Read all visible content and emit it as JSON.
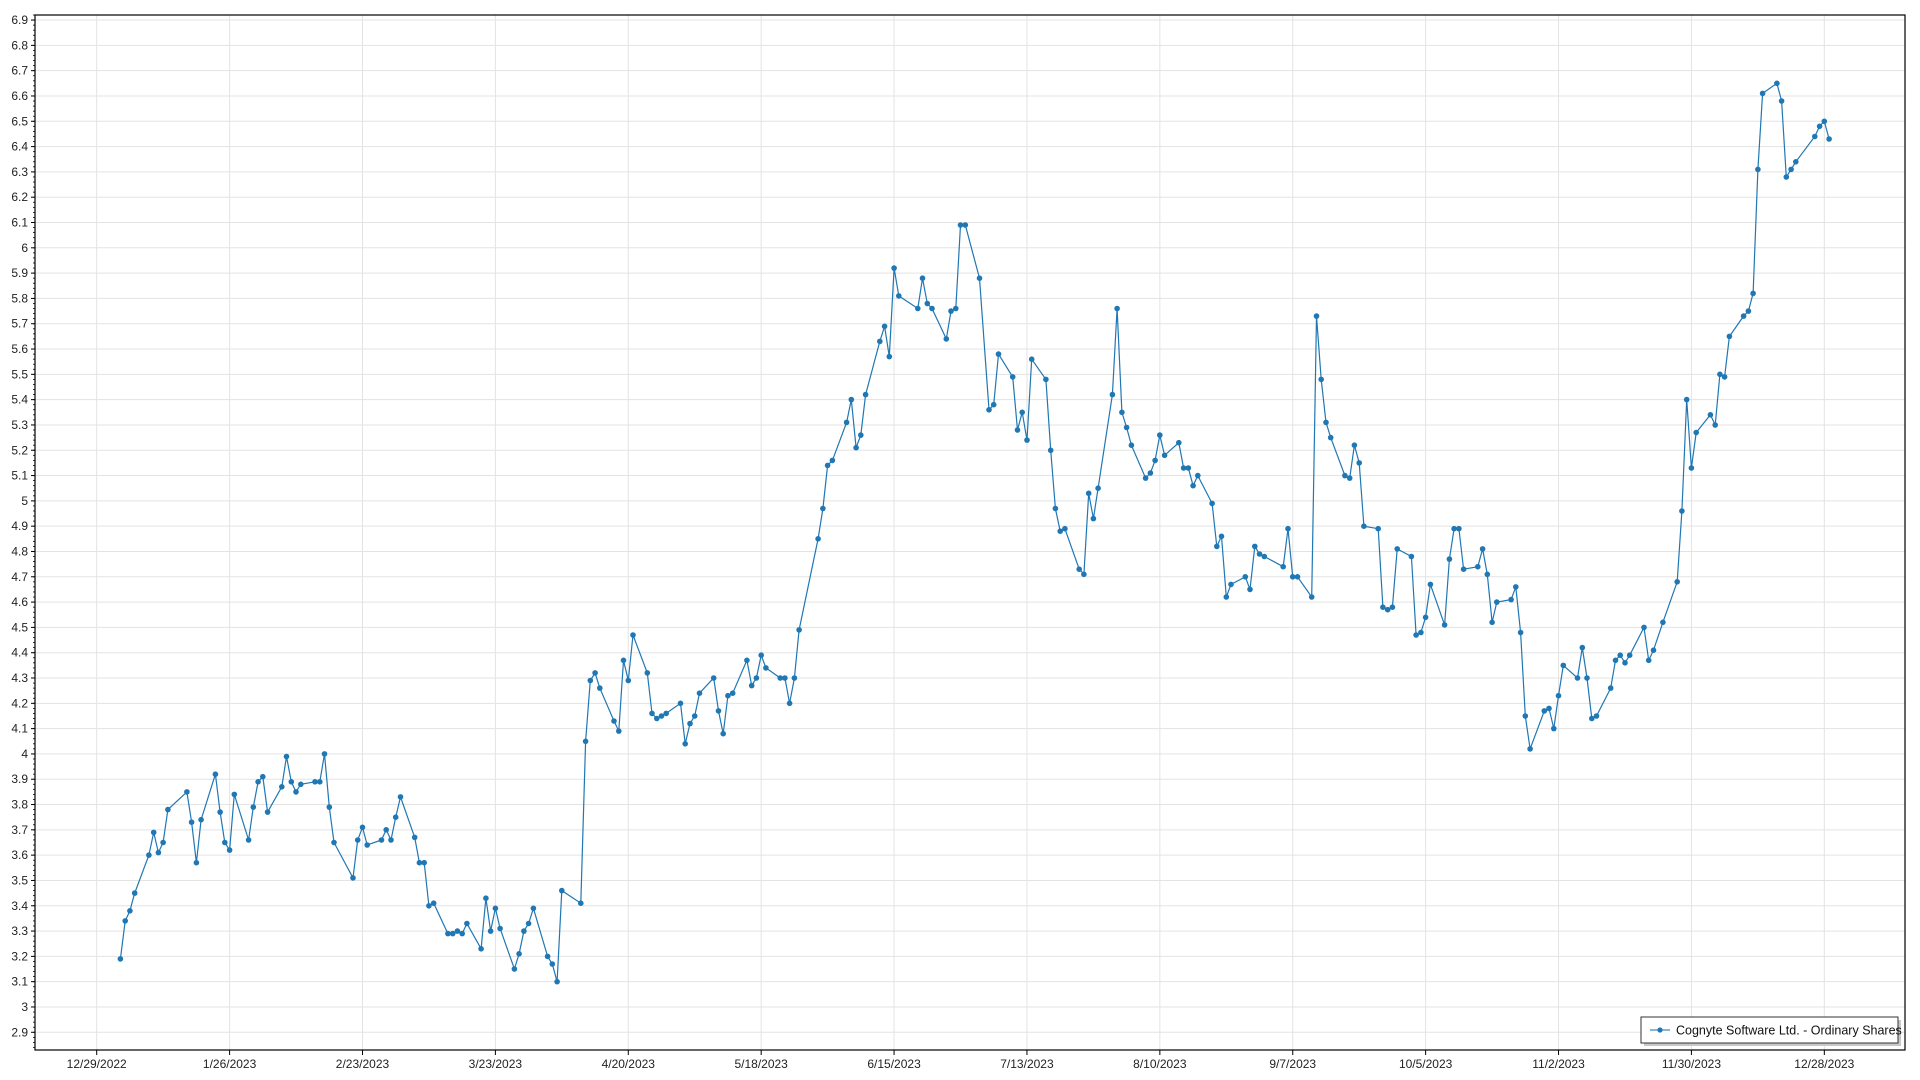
{
  "chart_data": {
    "type": "line",
    "title": "",
    "xlabel": "",
    "ylabel": "",
    "xlim": [
      "2022-12-16",
      "2024-01-14"
    ],
    "ylim": [
      2.83,
      6.92
    ],
    "grid": true,
    "legend_placement": "bottom-right",
    "x_ticks": [
      "12/29/2022",
      "1/26/2023",
      "2/23/2023",
      "3/23/2023",
      "4/20/2023",
      "5/18/2023",
      "6/15/2023",
      "7/13/2023",
      "8/10/2023",
      "9/7/2023",
      "10/5/2023",
      "11/2/2023",
      "11/30/2023",
      "12/28/2023"
    ],
    "y_ticks": [
      "2.9",
      "3",
      "3.1",
      "3.2",
      "3.3",
      "3.4",
      "3.5",
      "3.6",
      "3.7",
      "3.8",
      "3.9",
      "4",
      "4.1",
      "4.2",
      "4.3",
      "4.4",
      "4.5",
      "4.6",
      "4.7",
      "4.8",
      "4.9",
      "5",
      "5.1",
      "5.2",
      "5.3",
      "5.4",
      "5.5",
      "5.6",
      "5.7",
      "5.8",
      "5.9",
      "6",
      "6.1",
      "6.2",
      "6.3",
      "6.4",
      "6.5",
      "6.6",
      "6.7",
      "6.8",
      "6.9"
    ],
    "colors": {
      "series": "#1f77b4",
      "grid": "#e3e3e3",
      "axis": "#000000"
    },
    "series": [
      {
        "name": "Cognyte Software Ltd. - Ordinary Shares",
        "points": [
          [
            "2023-01-03",
            3.19
          ],
          [
            "2023-01-04",
            3.34
          ],
          [
            "2023-01-05",
            3.38
          ],
          [
            "2023-01-06",
            3.45
          ],
          [
            "2023-01-09",
            3.6
          ],
          [
            "2023-01-10",
            3.69
          ],
          [
            "2023-01-11",
            3.61
          ],
          [
            "2023-01-12",
            3.65
          ],
          [
            "2023-01-13",
            3.78
          ],
          [
            "2023-01-17",
            3.85
          ],
          [
            "2023-01-18",
            3.73
          ],
          [
            "2023-01-19",
            3.57
          ],
          [
            "2023-01-20",
            3.74
          ],
          [
            "2023-01-23",
            3.92
          ],
          [
            "2023-01-24",
            3.77
          ],
          [
            "2023-01-25",
            3.65
          ],
          [
            "2023-01-26",
            3.62
          ],
          [
            "2023-01-27",
            3.84
          ],
          [
            "2023-01-30",
            3.66
          ],
          [
            "2023-01-31",
            3.79
          ],
          [
            "2023-02-01",
            3.89
          ],
          [
            "2023-02-02",
            3.91
          ],
          [
            "2023-02-03",
            3.77
          ],
          [
            "2023-02-06",
            3.87
          ],
          [
            "2023-02-07",
            3.99
          ],
          [
            "2023-02-08",
            3.89
          ],
          [
            "2023-02-09",
            3.85
          ],
          [
            "2023-02-10",
            3.88
          ],
          [
            "2023-02-13",
            3.89
          ],
          [
            "2023-02-14",
            3.89
          ],
          [
            "2023-02-15",
            4.0
          ],
          [
            "2023-02-16",
            3.79
          ],
          [
            "2023-02-17",
            3.65
          ],
          [
            "2023-02-21",
            3.51
          ],
          [
            "2023-02-22",
            3.66
          ],
          [
            "2023-02-23",
            3.71
          ],
          [
            "2023-02-24",
            3.64
          ],
          [
            "2023-02-27",
            3.66
          ],
          [
            "2023-02-28",
            3.7
          ],
          [
            "2023-03-01",
            3.66
          ],
          [
            "2023-03-02",
            3.75
          ],
          [
            "2023-03-03",
            3.83
          ],
          [
            "2023-03-06",
            3.67
          ],
          [
            "2023-03-07",
            3.57
          ],
          [
            "2023-03-08",
            3.57
          ],
          [
            "2023-03-09",
            3.4
          ],
          [
            "2023-03-10",
            3.41
          ],
          [
            "2023-03-13",
            3.29
          ],
          [
            "2023-03-14",
            3.29
          ],
          [
            "2023-03-15",
            3.3
          ],
          [
            "2023-03-16",
            3.29
          ],
          [
            "2023-03-17",
            3.33
          ],
          [
            "2023-03-20",
            3.23
          ],
          [
            "2023-03-21",
            3.43
          ],
          [
            "2023-03-22",
            3.3
          ],
          [
            "2023-03-23",
            3.39
          ],
          [
            "2023-03-24",
            3.31
          ],
          [
            "2023-03-27",
            3.15
          ],
          [
            "2023-03-28",
            3.21
          ],
          [
            "2023-03-29",
            3.3
          ],
          [
            "2023-03-30",
            3.33
          ],
          [
            "2023-03-31",
            3.39
          ],
          [
            "2023-04-03",
            3.2
          ],
          [
            "2023-04-04",
            3.17
          ],
          [
            "2023-04-05",
            3.1
          ],
          [
            "2023-04-06",
            3.46
          ],
          [
            "2023-04-10",
            3.41
          ],
          [
            "2023-04-11",
            4.05
          ],
          [
            "2023-04-12",
            4.29
          ],
          [
            "2023-04-13",
            4.32
          ],
          [
            "2023-04-14",
            4.26
          ],
          [
            "2023-04-17",
            4.13
          ],
          [
            "2023-04-18",
            4.09
          ],
          [
            "2023-04-19",
            4.37
          ],
          [
            "2023-04-20",
            4.29
          ],
          [
            "2023-04-21",
            4.47
          ],
          [
            "2023-04-24",
            4.32
          ],
          [
            "2023-04-25",
            4.16
          ],
          [
            "2023-04-26",
            4.14
          ],
          [
            "2023-04-27",
            4.15
          ],
          [
            "2023-04-28",
            4.16
          ],
          [
            "2023-05-01",
            4.2
          ],
          [
            "2023-05-02",
            4.04
          ],
          [
            "2023-05-03",
            4.12
          ],
          [
            "2023-05-04",
            4.15
          ],
          [
            "2023-05-05",
            4.24
          ],
          [
            "2023-05-08",
            4.3
          ],
          [
            "2023-05-09",
            4.17
          ],
          [
            "2023-05-10",
            4.08
          ],
          [
            "2023-05-11",
            4.23
          ],
          [
            "2023-05-12",
            4.24
          ],
          [
            "2023-05-15",
            4.37
          ],
          [
            "2023-05-16",
            4.27
          ],
          [
            "2023-05-17",
            4.3
          ],
          [
            "2023-05-18",
            4.39
          ],
          [
            "2023-05-19",
            4.34
          ],
          [
            "2023-05-22",
            4.3
          ],
          [
            "2023-05-23",
            4.3
          ],
          [
            "2023-05-24",
            4.2
          ],
          [
            "2023-05-25",
            4.3
          ],
          [
            "2023-05-26",
            4.49
          ],
          [
            "2023-05-30",
            4.85
          ],
          [
            "2023-05-31",
            4.97
          ],
          [
            "2023-06-01",
            5.14
          ],
          [
            "2023-06-02",
            5.16
          ],
          [
            "2023-06-05",
            5.31
          ],
          [
            "2023-06-06",
            5.4
          ],
          [
            "2023-06-07",
            5.21
          ],
          [
            "2023-06-08",
            5.26
          ],
          [
            "2023-06-09",
            5.42
          ],
          [
            "2023-06-12",
            5.63
          ],
          [
            "2023-06-13",
            5.69
          ],
          [
            "2023-06-14",
            5.57
          ],
          [
            "2023-06-15",
            5.92
          ],
          [
            "2023-06-16",
            5.81
          ],
          [
            "2023-06-20",
            5.76
          ],
          [
            "2023-06-21",
            5.88
          ],
          [
            "2023-06-22",
            5.78
          ],
          [
            "2023-06-23",
            5.76
          ],
          [
            "2023-06-26",
            5.64
          ],
          [
            "2023-06-27",
            5.75
          ],
          [
            "2023-06-28",
            5.76
          ],
          [
            "2023-06-29",
            6.09
          ],
          [
            "2023-06-30",
            6.09
          ],
          [
            "2023-07-03",
            5.88
          ],
          [
            "2023-07-05",
            5.36
          ],
          [
            "2023-07-06",
            5.38
          ],
          [
            "2023-07-07",
            5.58
          ],
          [
            "2023-07-10",
            5.49
          ],
          [
            "2023-07-11",
            5.28
          ],
          [
            "2023-07-12",
            5.35
          ],
          [
            "2023-07-13",
            5.24
          ],
          [
            "2023-07-14",
            5.56
          ],
          [
            "2023-07-17",
            5.48
          ],
          [
            "2023-07-18",
            5.2
          ],
          [
            "2023-07-19",
            4.97
          ],
          [
            "2023-07-20",
            4.88
          ],
          [
            "2023-07-21",
            4.89
          ],
          [
            "2023-07-24",
            4.73
          ],
          [
            "2023-07-25",
            4.71
          ],
          [
            "2023-07-26",
            5.03
          ],
          [
            "2023-07-27",
            4.93
          ],
          [
            "2023-07-28",
            5.05
          ],
          [
            "2023-07-31",
            5.42
          ],
          [
            "2023-08-01",
            5.76
          ],
          [
            "2023-08-02",
            5.35
          ],
          [
            "2023-08-03",
            5.29
          ],
          [
            "2023-08-04",
            5.22
          ],
          [
            "2023-08-07",
            5.09
          ],
          [
            "2023-08-08",
            5.11
          ],
          [
            "2023-08-09",
            5.16
          ],
          [
            "2023-08-10",
            5.26
          ],
          [
            "2023-08-11",
            5.18
          ],
          [
            "2023-08-14",
            5.23
          ],
          [
            "2023-08-15",
            5.13
          ],
          [
            "2023-08-16",
            5.13
          ],
          [
            "2023-08-17",
            5.06
          ],
          [
            "2023-08-18",
            5.1
          ],
          [
            "2023-08-21",
            4.99
          ],
          [
            "2023-08-22",
            4.82
          ],
          [
            "2023-08-23",
            4.86
          ],
          [
            "2023-08-24",
            4.62
          ],
          [
            "2023-08-25",
            4.67
          ],
          [
            "2023-08-28",
            4.7
          ],
          [
            "2023-08-29",
            4.65
          ],
          [
            "2023-08-30",
            4.82
          ],
          [
            "2023-08-31",
            4.79
          ],
          [
            "2023-09-01",
            4.78
          ],
          [
            "2023-09-05",
            4.74
          ],
          [
            "2023-09-06",
            4.89
          ],
          [
            "2023-09-07",
            4.7
          ],
          [
            "2023-09-08",
            4.7
          ],
          [
            "2023-09-11",
            4.62
          ],
          [
            "2023-09-12",
            5.73
          ],
          [
            "2023-09-13",
            5.48
          ],
          [
            "2023-09-14",
            5.31
          ],
          [
            "2023-09-15",
            5.25
          ],
          [
            "2023-09-18",
            5.1
          ],
          [
            "2023-09-19",
            5.09
          ],
          [
            "2023-09-20",
            5.22
          ],
          [
            "2023-09-21",
            5.15
          ],
          [
            "2023-09-22",
            4.9
          ],
          [
            "2023-09-25",
            4.89
          ],
          [
            "2023-09-26",
            4.58
          ],
          [
            "2023-09-27",
            4.57
          ],
          [
            "2023-09-28",
            4.58
          ],
          [
            "2023-09-29",
            4.81
          ],
          [
            "2023-10-02",
            4.78
          ],
          [
            "2023-10-03",
            4.47
          ],
          [
            "2023-10-04",
            4.48
          ],
          [
            "2023-10-05",
            4.54
          ],
          [
            "2023-10-06",
            4.67
          ],
          [
            "2023-10-09",
            4.51
          ],
          [
            "2023-10-10",
            4.77
          ],
          [
            "2023-10-11",
            4.89
          ],
          [
            "2023-10-12",
            4.89
          ],
          [
            "2023-10-13",
            4.73
          ],
          [
            "2023-10-16",
            4.74
          ],
          [
            "2023-10-17",
            4.81
          ],
          [
            "2023-10-18",
            4.71
          ],
          [
            "2023-10-19",
            4.52
          ],
          [
            "2023-10-20",
            4.6
          ],
          [
            "2023-10-23",
            4.61
          ],
          [
            "2023-10-24",
            4.66
          ],
          [
            "2023-10-25",
            4.48
          ],
          [
            "2023-10-26",
            4.15
          ],
          [
            "2023-10-27",
            4.02
          ],
          [
            "2023-10-30",
            4.17
          ],
          [
            "2023-10-31",
            4.18
          ],
          [
            "2023-11-01",
            4.1
          ],
          [
            "2023-11-02",
            4.23
          ],
          [
            "2023-11-03",
            4.35
          ],
          [
            "2023-11-06",
            4.3
          ],
          [
            "2023-11-07",
            4.42
          ],
          [
            "2023-11-08",
            4.3
          ],
          [
            "2023-11-09",
            4.14
          ],
          [
            "2023-11-10",
            4.15
          ],
          [
            "2023-11-13",
            4.26
          ],
          [
            "2023-11-14",
            4.37
          ],
          [
            "2023-11-15",
            4.39
          ],
          [
            "2023-11-16",
            4.36
          ],
          [
            "2023-11-17",
            4.39
          ],
          [
            "2023-11-20",
            4.5
          ],
          [
            "2023-11-21",
            4.37
          ],
          [
            "2023-11-22",
            4.41
          ],
          [
            "2023-11-24",
            4.52
          ],
          [
            "2023-11-27",
            4.68
          ],
          [
            "2023-11-28",
            4.96
          ],
          [
            "2023-11-29",
            5.4
          ],
          [
            "2023-11-30",
            5.13
          ],
          [
            "2023-12-01",
            5.27
          ],
          [
            "2023-12-04",
            5.34
          ],
          [
            "2023-12-05",
            5.3
          ],
          [
            "2023-12-06",
            5.5
          ],
          [
            "2023-12-07",
            5.49
          ],
          [
            "2023-12-08",
            5.65
          ],
          [
            "2023-12-11",
            5.73
          ],
          [
            "2023-12-12",
            5.75
          ],
          [
            "2023-12-13",
            5.82
          ],
          [
            "2023-12-14",
            6.31
          ],
          [
            "2023-12-15",
            6.61
          ],
          [
            "2023-12-18",
            6.65
          ],
          [
            "2023-12-19",
            6.58
          ],
          [
            "2023-12-20",
            6.28
          ],
          [
            "2023-12-21",
            6.31
          ],
          [
            "2023-12-22",
            6.34
          ],
          [
            "2023-12-26",
            6.44
          ],
          [
            "2023-12-27",
            6.48
          ],
          [
            "2023-12-28",
            6.5
          ],
          [
            "2023-12-29",
            6.43
          ]
        ]
      }
    ]
  }
}
